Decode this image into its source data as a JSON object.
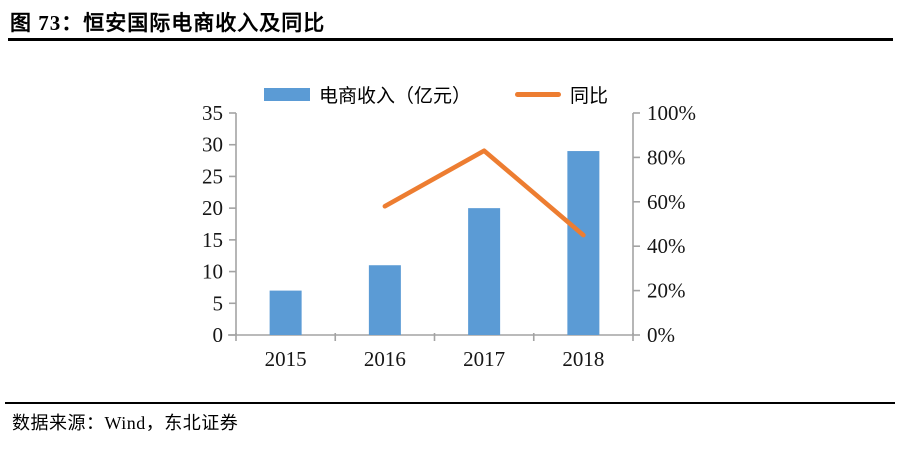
{
  "header": {
    "title": "图 73：恒安国际电商收入及同比"
  },
  "chart_data": {
    "type": "bar+line",
    "title": "恒安国际电商收入及同比",
    "categories": [
      "2015",
      "2016",
      "2017",
      "2018"
    ],
    "series": [
      {
        "name": "电商收入（亿元）",
        "type": "bar",
        "axis": "left",
        "color": "#5B9BD5",
        "values": [
          7,
          11,
          20,
          29
        ]
      },
      {
        "name": "同比",
        "type": "line",
        "axis": "right",
        "color": "#ED7D31",
        "values": [
          null,
          58,
          83,
          45
        ],
        "unit": "%"
      }
    ],
    "left_axis": {
      "min": 0,
      "max": 35,
      "step": 5,
      "suffix": ""
    },
    "right_axis": {
      "min": 0,
      "max": 100,
      "step": 20,
      "suffix": "%"
    },
    "grid": false,
    "legend_position": "top-center",
    "axis_color": "#a3a3a3"
  },
  "footer": {
    "source": "数据来源：Wind，东北证券"
  }
}
